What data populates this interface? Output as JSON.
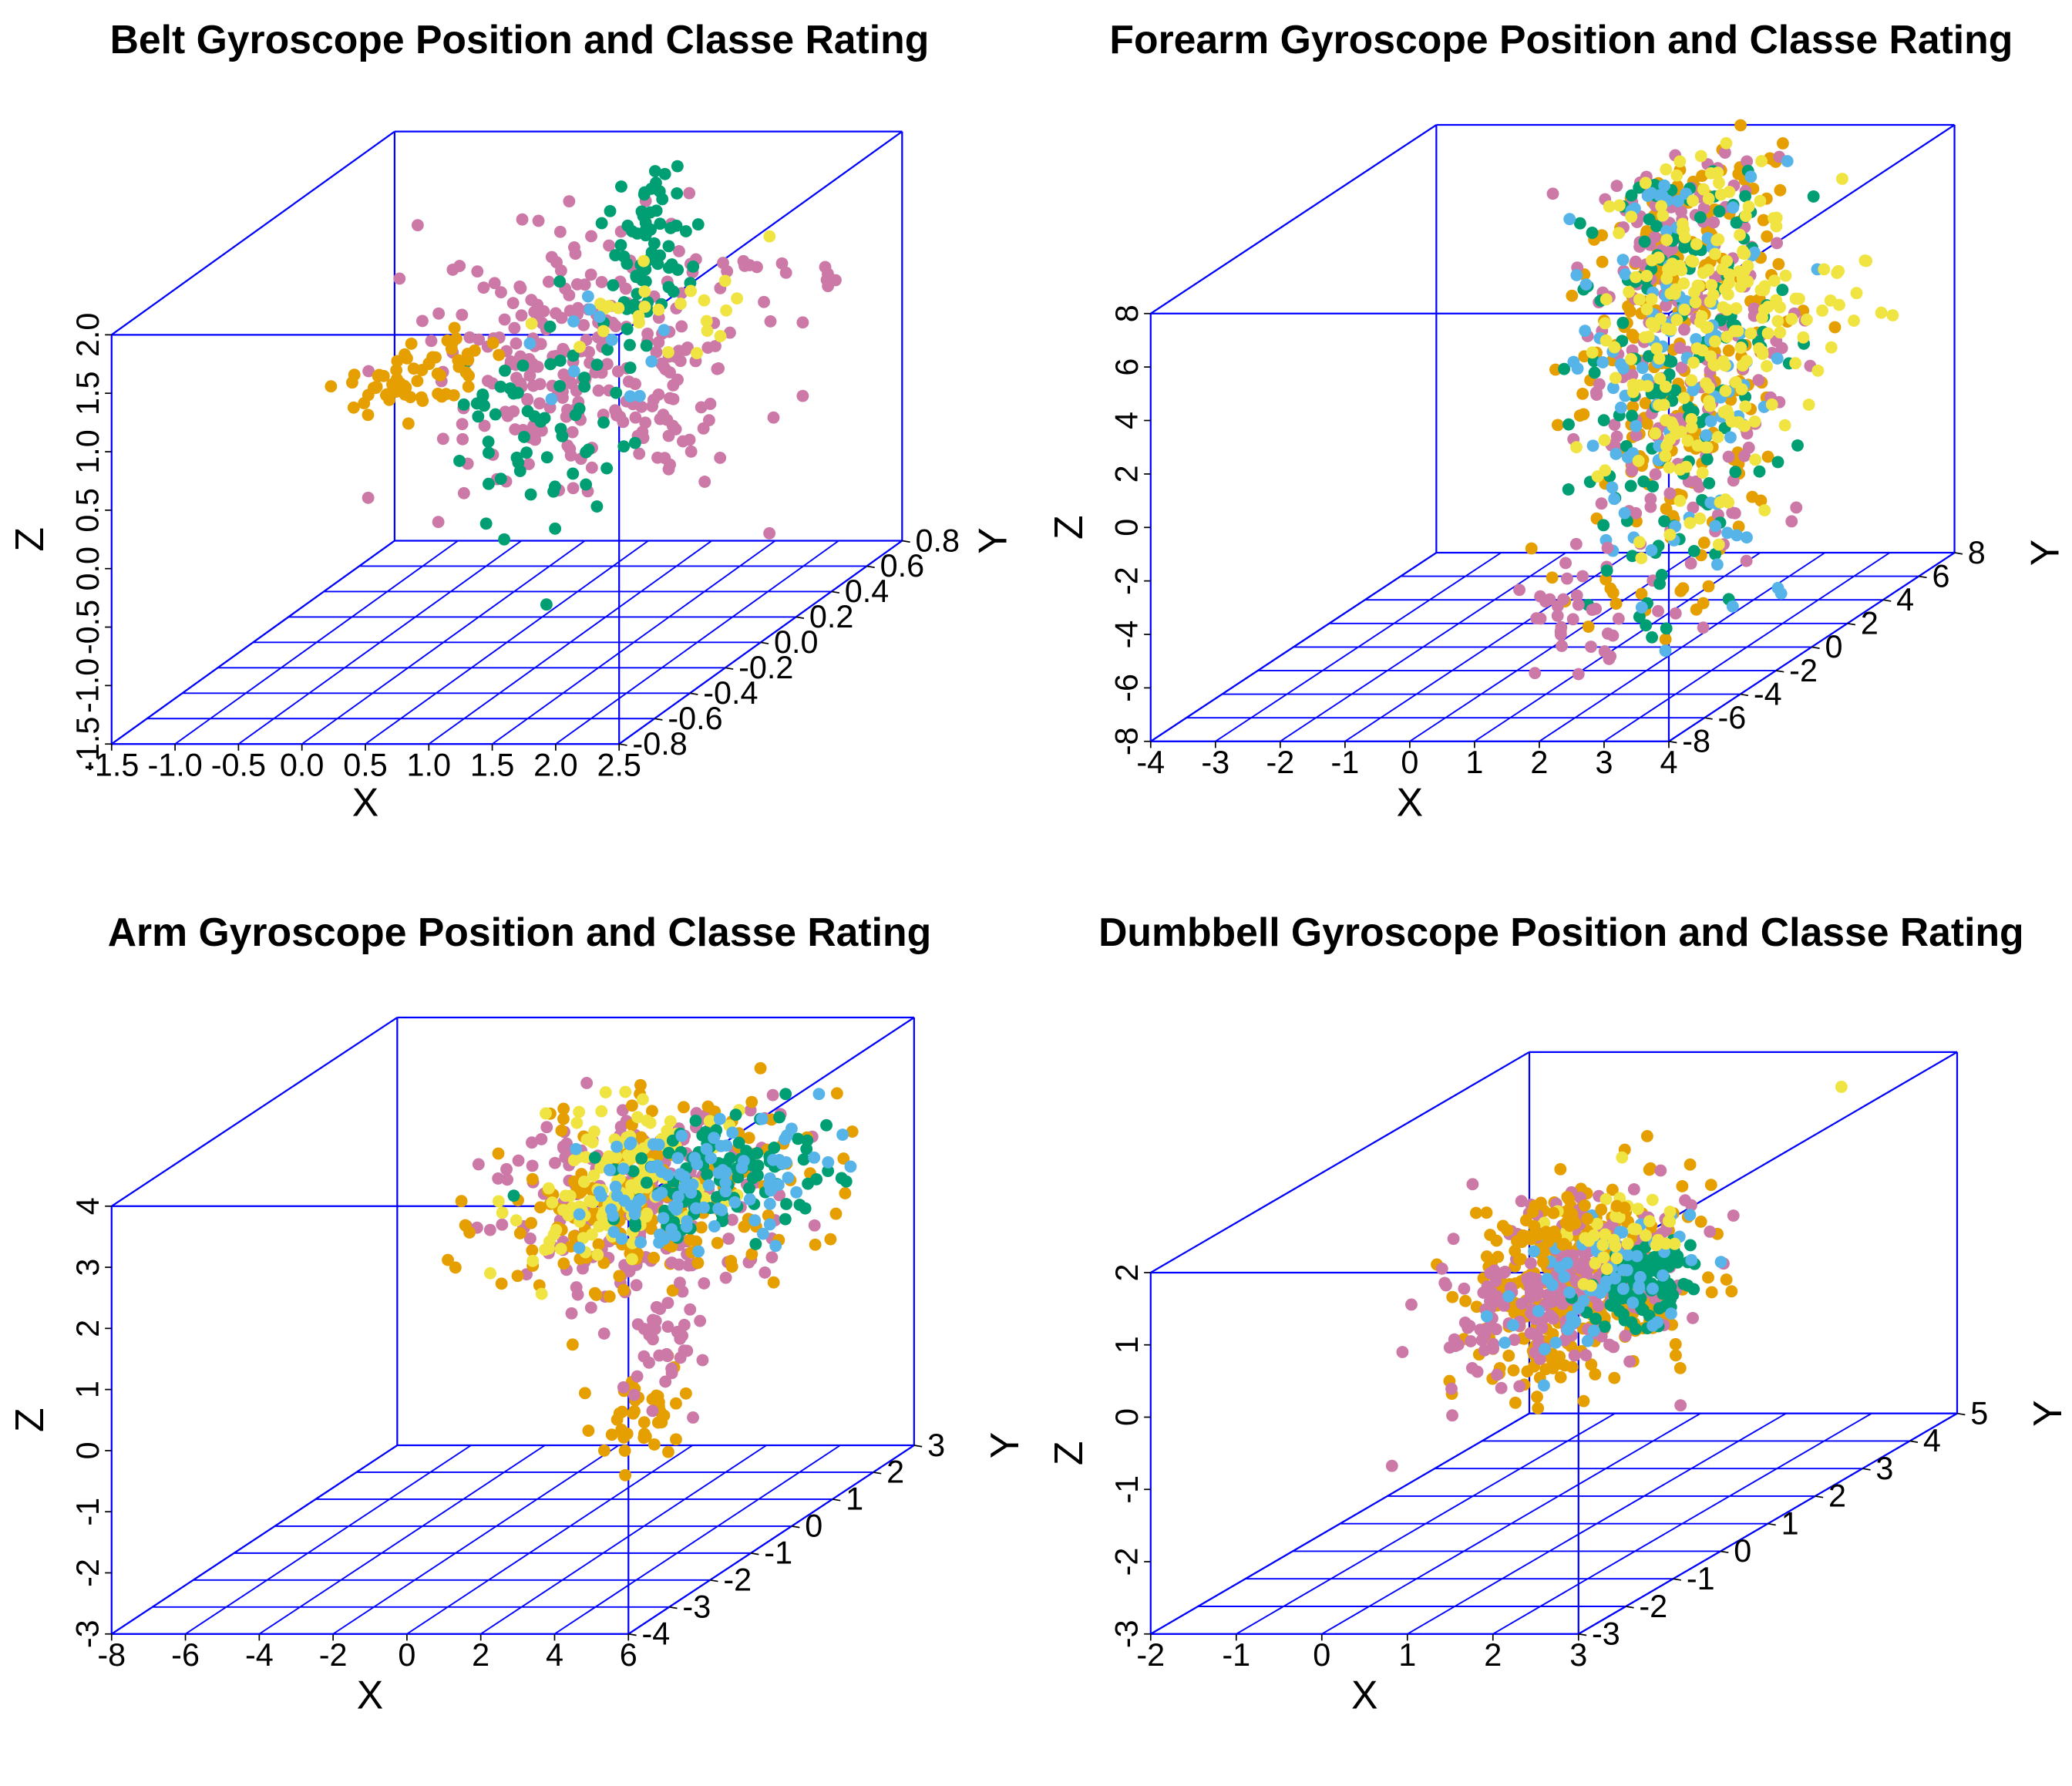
{
  "figure": {
    "background": "#ffffff"
  },
  "palette": {
    "box": "#0000ff",
    "class_colors": [
      "#cc79a7",
      "#e69f00",
      "#009e73",
      "#56b4e9",
      "#f0e442"
    ]
  },
  "chart_data": [
    {
      "type": "scatter",
      "title": "Belt Gyroscope Position and Classe Rating",
      "xlabel": "X",
      "ylabel": "Y",
      "zlabel": "Z",
      "xlim": [
        -1.5,
        2.5
      ],
      "ylim": [
        -0.8,
        0.8
      ],
      "zlim": [
        -1.5,
        2.0
      ],
      "x_ticks": [
        "-1.5",
        "-1.0",
        "-0.5",
        "0.0",
        "0.5",
        "1.0",
        "1.5",
        "2.0",
        "2.5"
      ],
      "y_ticks": [
        "-0.8",
        "-0.6",
        "-0.4",
        "-0.2",
        "0.0",
        "0.2",
        "0.4",
        "0.6",
        "0.8"
      ],
      "z_ticks": [
        "-1.5",
        "-1.0",
        "-0.5",
        "0.0",
        "0.5",
        "1.0",
        "1.5",
        "2.0"
      ],
      "grid": true,
      "clusters": [
        {
          "cls": 0,
          "n": 260,
          "c": [
            0.6,
            0.35,
            0.55
          ],
          "s": [
            0.55,
            0.18,
            0.5
          ]
        },
        {
          "cls": 0,
          "n": 18,
          "c": [
            1.8,
            0.5,
            1.05
          ],
          "s": [
            0.45,
            0.08,
            0.12
          ]
        },
        {
          "cls": 2,
          "n": 70,
          "c": [
            1.0,
            0.45,
            1.35
          ],
          "s": [
            0.12,
            0.08,
            0.4
          ]
        },
        {
          "cls": 2,
          "n": 60,
          "c": [
            0.55,
            0.2,
            0.1
          ],
          "s": [
            0.35,
            0.15,
            0.45
          ]
        },
        {
          "cls": 1,
          "n": 60,
          "c": [
            -0.2,
            0.0,
            0.8
          ],
          "s": [
            0.3,
            0.15,
            0.12
          ]
        },
        {
          "cls": 4,
          "n": 25,
          "c": [
            1.0,
            0.45,
            0.85
          ],
          "s": [
            0.4,
            0.1,
            0.2
          ]
        },
        {
          "cls": 3,
          "n": 12,
          "c": [
            0.7,
            0.3,
            0.7
          ],
          "s": [
            0.3,
            0.1,
            0.3
          ]
        }
      ]
    },
    {
      "type": "scatter",
      "title": "Forearm Gyroscope Position and Classe Rating",
      "xlabel": "X",
      "ylabel": "Y",
      "zlabel": "Z",
      "xlim": [
        -4,
        4
      ],
      "ylim": [
        -8,
        8
      ],
      "zlim": [
        -8,
        8
      ],
      "x_ticks": [
        "-4",
        "-3",
        "-2",
        "-1",
        "0",
        "1",
        "2",
        "3",
        "4"
      ],
      "y_ticks": [
        "-8",
        "-6",
        "-4",
        "-2",
        "0",
        "2",
        "4",
        "6",
        "8"
      ],
      "z_ticks": [
        "-8",
        "-6",
        "-4",
        "-2",
        "0",
        "2",
        "4",
        "6",
        "8"
      ],
      "grid": true,
      "clusters": [
        {
          "cls": 1,
          "n": 240,
          "c": [
            1.3,
            2.5,
            2.0
          ],
          "s": [
            0.6,
            1.8,
            5.0
          ]
        },
        {
          "cls": 0,
          "n": 200,
          "c": [
            1.3,
            2.5,
            2.0
          ],
          "s": [
            0.6,
            1.8,
            5.0
          ]
        },
        {
          "cls": 2,
          "n": 150,
          "c": [
            1.3,
            2.5,
            2.0
          ],
          "s": [
            0.6,
            1.8,
            5.0
          ]
        },
        {
          "cls": 3,
          "n": 110,
          "c": [
            1.3,
            2.5,
            2.0
          ],
          "s": [
            0.6,
            1.8,
            5.0
          ]
        },
        {
          "cls": 4,
          "n": 200,
          "c": [
            1.4,
            2.8,
            2.5
          ],
          "s": [
            0.6,
            1.8,
            4.0
          ]
        },
        {
          "cls": 4,
          "n": 25,
          "c": [
            2.6,
            4.5,
            3.0
          ],
          "s": [
            0.5,
            1.2,
            0.8
          ]
        },
        {
          "cls": 0,
          "n": 30,
          "c": [
            1.0,
            -2.5,
            -5.5
          ],
          "s": [
            0.4,
            1.0,
            1.0
          ]
        }
      ]
    },
    {
      "type": "scatter",
      "title": "Arm Gyroscope Position and Classe Rating",
      "xlabel": "X",
      "ylabel": "Y",
      "zlabel": "Z",
      "xlim": [
        -8,
        6
      ],
      "ylim": [
        -4,
        3
      ],
      "zlim": [
        -3,
        4
      ],
      "x_ticks": [
        "-8",
        "-6",
        "-4",
        "-2",
        "0",
        "2",
        "4",
        "6"
      ],
      "y_ticks": [
        "-4",
        "-3",
        "-2",
        "-1",
        "0",
        "1",
        "2",
        "3"
      ],
      "z_ticks": [
        "-3",
        "-2",
        "-1",
        "0",
        "1",
        "2",
        "3",
        "4"
      ],
      "grid": true,
      "clusters": [
        {
          "cls": 0,
          "n": 220,
          "c": [
            1.0,
            1.0,
            2.0
          ],
          "s": [
            1.8,
            0.8,
            0.7
          ]
        },
        {
          "cls": 1,
          "n": 200,
          "c": [
            1.2,
            1.0,
            1.9
          ],
          "s": [
            1.8,
            0.8,
            0.7
          ]
        },
        {
          "cls": 1,
          "n": 40,
          "c": [
            3.5,
            -1.5,
            -0.5
          ],
          "s": [
            0.6,
            0.4,
            0.4
          ]
        },
        {
          "cls": 4,
          "n": 130,
          "c": [
            0.0,
            1.2,
            2.0
          ],
          "s": [
            1.2,
            0.7,
            0.5
          ]
        },
        {
          "cls": 2,
          "n": 110,
          "c": [
            2.5,
            1.4,
            2.0
          ],
          "s": [
            1.5,
            0.7,
            0.5
          ]
        },
        {
          "cls": 3,
          "n": 100,
          "c": [
            2.0,
            1.2,
            2.1
          ],
          "s": [
            1.6,
            0.6,
            0.5
          ]
        },
        {
          "cls": 0,
          "n": 40,
          "c": [
            3.0,
            -0.5,
            0.3
          ],
          "s": [
            0.6,
            0.4,
            0.6
          ]
        }
      ]
    },
    {
      "type": "scatter",
      "title": "Dumbbell Gyroscope Position and Classe Rating",
      "xlabel": "X",
      "ylabel": "Y",
      "zlabel": "Z",
      "xlim": [
        -2,
        3
      ],
      "ylim": [
        -3,
        5
      ],
      "zlim": [
        -3,
        2
      ],
      "x_ticks": [
        "-2",
        "-1",
        "0",
        "1",
        "2",
        "3"
      ],
      "y_ticks": [
        "-3",
        "-2",
        "-1",
        "0",
        "1",
        "2",
        "3",
        "4",
        "5"
      ],
      "z_ticks": [
        "-3",
        "-2",
        "-1",
        "0",
        "1",
        "2"
      ],
      "grid": true,
      "clusters": [
        {
          "cls": 1,
          "n": 320,
          "c": [
            0.7,
            1.2,
            0.2
          ],
          "s": [
            0.5,
            0.9,
            0.6
          ]
        },
        {
          "cls": 0,
          "n": 240,
          "c": [
            0.6,
            1.0,
            0.2
          ],
          "s": [
            0.5,
            0.9,
            0.55
          ]
        },
        {
          "cls": 2,
          "n": 110,
          "c": [
            1.4,
            1.3,
            0.3
          ],
          "s": [
            0.2,
            0.4,
            0.3
          ]
        },
        {
          "cls": 3,
          "n": 70,
          "c": [
            0.9,
            1.2,
            0.3
          ],
          "s": [
            0.4,
            0.6,
            0.5
          ]
        },
        {
          "cls": 4,
          "n": 40,
          "c": [
            0.7,
            1.8,
            0.7
          ],
          "s": [
            0.3,
            0.5,
            0.3
          ]
        },
        {
          "cls": 1,
          "n": 40,
          "c": [
            -0.1,
            1.8,
            0.8
          ],
          "s": [
            0.3,
            0.4,
            0.2
          ]
        }
      ],
      "outliers": [
        {
          "cls": 4,
          "x": 2.2,
          "y": 4.0,
          "z": 1.9
        }
      ]
    }
  ]
}
